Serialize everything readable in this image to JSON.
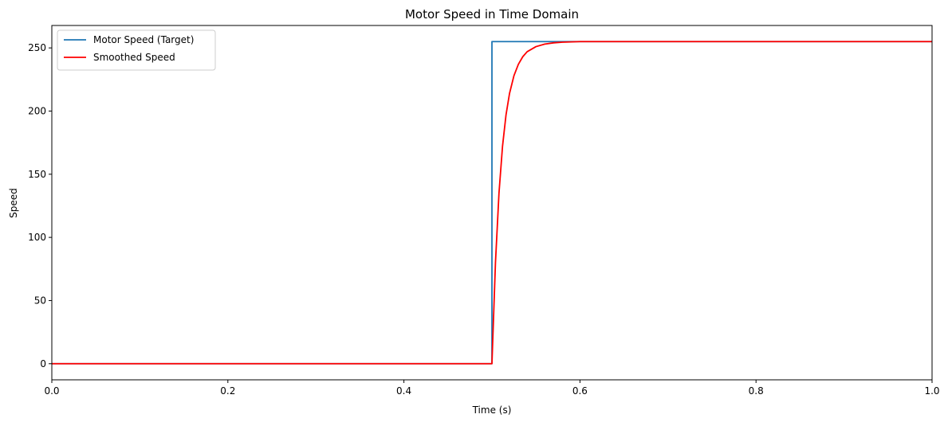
{
  "chart_data": {
    "type": "line",
    "title": "Motor Speed in Time Domain",
    "xlabel": "Time (s)",
    "ylabel": "Speed",
    "xlim": [
      0.0,
      1.0
    ],
    "ylim": [
      -12.75,
      267.75
    ],
    "xticks": [
      0.0,
      0.2,
      0.4,
      0.6,
      0.8,
      1.0
    ],
    "xtick_labels": [
      "0.0",
      "0.2",
      "0.4",
      "0.6",
      "0.8",
      "1.0"
    ],
    "yticks": [
      0,
      50,
      100,
      150,
      200,
      250
    ],
    "ytick_labels": [
      "0",
      "50",
      "100",
      "150",
      "200",
      "250"
    ],
    "grid": false,
    "legend_position": "top-left",
    "series": [
      {
        "name": "Motor Speed (Target)",
        "color": "#1f77b4",
        "x": [
          0.0,
          0.5,
          0.5,
          1.0
        ],
        "y": [
          0,
          0,
          255,
          255
        ]
      },
      {
        "name": "Smoothed Speed",
        "color": "#ff0000",
        "x": [
          0.0,
          0.5,
          0.504,
          0.508,
          0.512,
          0.516,
          0.52,
          0.525,
          0.53,
          0.535,
          0.54,
          0.55,
          0.56,
          0.57,
          0.58,
          0.6,
          0.65,
          0.7,
          0.8,
          1.0
        ],
        "y": [
          0,
          0,
          80,
          135,
          172,
          197,
          214,
          228,
          237,
          243,
          247,
          251,
          253,
          254,
          254.5,
          255,
          255,
          255,
          255,
          255
        ]
      }
    ]
  }
}
